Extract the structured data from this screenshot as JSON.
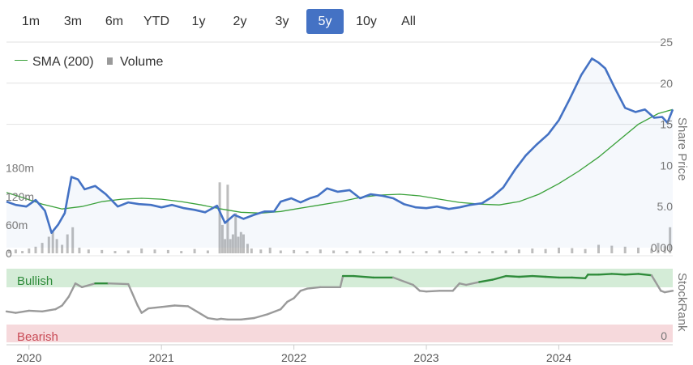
{
  "range_buttons": [
    {
      "label": "1m",
      "active": false
    },
    {
      "label": "3m",
      "active": false
    },
    {
      "label": "6m",
      "active": false
    },
    {
      "label": "YTD",
      "active": false
    },
    {
      "label": "1y",
      "active": false
    },
    {
      "label": "2y",
      "active": false
    },
    {
      "label": "3y",
      "active": false
    },
    {
      "label": "5y",
      "active": true
    },
    {
      "label": "10y",
      "active": false
    },
    {
      "label": "All",
      "active": false
    }
  ],
  "legend": {
    "sma_label": "SMA (200)",
    "volume_label": "Volume"
  },
  "colors": {
    "price": "#4472c4",
    "sma": "#3aa13a",
    "volume": "#bdbdbd",
    "stockrank_bullish": "#2e8b3a",
    "stockrank_neutral": "#9a9a9a",
    "bullish_band": "#d4ecd7",
    "bearish_band": "#f6d9dc",
    "active_button": "#4472c4"
  },
  "chart_data": [
    {
      "type": "line",
      "title": "",
      "ylabel": "Share Price",
      "ylim": [
        0,
        25
      ],
      "yticks": [
        "25",
        "20",
        "15",
        "10",
        "5.0",
        "0.00"
      ],
      "x_ticks": [
        "2020",
        "2021",
        "2022",
        "2023",
        "2024"
      ],
      "x_range": [
        2019.83,
        2024.86
      ],
      "series": [
        {
          "name": "Price",
          "x": [
            2019.83,
            2019.9,
            2019.98,
            2020.05,
            2020.12,
            2020.17,
            2020.22,
            2020.27,
            2020.32,
            2020.37,
            2020.42,
            2020.5,
            2020.58,
            2020.67,
            2020.75,
            2020.83,
            2020.92,
            2021.0,
            2021.08,
            2021.17,
            2021.25,
            2021.33,
            2021.42,
            2021.48,
            2021.55,
            2021.62,
            2021.7,
            2021.78,
            2021.85,
            2021.9,
            2021.98,
            2022.05,
            2022.12,
            2022.18,
            2022.25,
            2022.33,
            2022.42,
            2022.5,
            2022.58,
            2022.67,
            2022.75,
            2022.83,
            2022.92,
            2023.0,
            2023.08,
            2023.17,
            2023.25,
            2023.33,
            2023.42,
            2023.5,
            2023.58,
            2023.67,
            2023.75,
            2023.83,
            2023.92,
            2024.0,
            2024.08,
            2024.17,
            2024.25,
            2024.3,
            2024.35,
            2024.42,
            2024.5,
            2024.58,
            2024.65,
            2024.72,
            2024.78,
            2024.82,
            2024.86
          ],
          "y": [
            5.6,
            5.2,
            5.0,
            5.8,
            4.5,
            1.8,
            2.8,
            4.2,
            8.6,
            8.3,
            7.1,
            7.5,
            6.5,
            5.0,
            5.5,
            5.3,
            5.2,
            4.9,
            5.2,
            4.8,
            4.6,
            4.3,
            5.1,
            3.0,
            4.0,
            3.5,
            4.0,
            4.4,
            4.4,
            5.6,
            6.0,
            5.5,
            6.0,
            6.3,
            7.2,
            6.8,
            7.0,
            6.0,
            6.5,
            6.3,
            6.0,
            5.3,
            4.9,
            4.8,
            5.0,
            4.7,
            4.9,
            5.2,
            5.4,
            6.2,
            7.3,
            9.5,
            11.2,
            12.5,
            13.8,
            15.5,
            18.0,
            21.0,
            23.0,
            22.5,
            21.8,
            19.5,
            17.0,
            16.5,
            16.8,
            15.8,
            15.9,
            15.2,
            16.8
          ]
        },
        {
          "name": "SMA (200)",
          "x": [
            2019.83,
            2019.95,
            2020.1,
            2020.25,
            2020.4,
            2020.55,
            2020.7,
            2020.85,
            2021.0,
            2021.15,
            2021.3,
            2021.45,
            2021.6,
            2021.75,
            2021.9,
            2022.05,
            2022.2,
            2022.35,
            2022.5,
            2022.65,
            2022.8,
            2022.95,
            2023.1,
            2023.25,
            2023.4,
            2023.55,
            2023.7,
            2023.85,
            2024.0,
            2024.15,
            2024.3,
            2024.45,
            2024.6,
            2024.75,
            2024.86
          ],
          "y": [
            6.7,
            6.1,
            5.3,
            4.7,
            5.0,
            5.6,
            5.9,
            6.0,
            5.9,
            5.6,
            5.2,
            4.7,
            4.3,
            4.2,
            4.4,
            4.8,
            5.2,
            5.6,
            6.1,
            6.4,
            6.5,
            6.3,
            5.9,
            5.5,
            5.3,
            5.2,
            5.6,
            6.5,
            7.8,
            9.3,
            11.0,
            13.0,
            15.0,
            16.3,
            16.8
          ]
        }
      ]
    },
    {
      "type": "bar",
      "title": "",
      "ylabel": "",
      "ylim": [
        0,
        200
      ],
      "yticks": [
        "180m",
        "120m",
        "60m",
        "0"
      ],
      "series": [
        {
          "name": "Volume",
          "x": [
            2019.85,
            2019.9,
            2019.95,
            2020.0,
            2020.05,
            2020.1,
            2020.15,
            2020.18,
            2020.21,
            2020.25,
            2020.29,
            2020.33,
            2020.38,
            2020.45,
            2020.55,
            2020.65,
            2020.75,
            2020.85,
            2020.95,
            2021.05,
            2021.15,
            2021.25,
            2021.35,
            2021.44,
            2021.46,
            2021.48,
            2021.5,
            2021.52,
            2021.54,
            2021.56,
            2021.58,
            2021.6,
            2021.62,
            2021.65,
            2021.68,
            2021.75,
            2021.82,
            2021.9,
            2022.0,
            2022.1,
            2022.2,
            2022.3,
            2022.4,
            2022.5,
            2022.6,
            2022.7,
            2022.8,
            2022.9,
            2023.0,
            2023.1,
            2023.2,
            2023.3,
            2023.4,
            2023.5,
            2023.6,
            2023.7,
            2023.8,
            2023.9,
            2024.0,
            2024.1,
            2024.2,
            2024.3,
            2024.4,
            2024.5,
            2024.6,
            2024.7,
            2024.75,
            2024.8,
            2024.84
          ],
          "y": [
            6,
            8,
            5,
            10,
            14,
            22,
            35,
            45,
            30,
            18,
            40,
            55,
            12,
            8,
            7,
            5,
            6,
            10,
            8,
            7,
            5,
            9,
            6,
            150,
            60,
            30,
            145,
            30,
            40,
            85,
            35,
            45,
            40,
            20,
            10,
            8,
            12,
            6,
            7,
            5,
            8,
            6,
            5,
            6,
            4,
            5,
            6,
            4,
            5,
            6,
            4,
            5,
            4,
            5,
            6,
            8,
            10,
            9,
            12,
            11,
            9,
            18,
            16,
            14,
            12,
            10,
            22,
            15,
            55
          ]
        }
      ]
    },
    {
      "type": "line",
      "title": "",
      "ylabel": "StockRank",
      "ylim": [
        0,
        100
      ],
      "ytick": "0",
      "bands": [
        {
          "label": "Bullish",
          "range": [
            80,
            100
          ]
        },
        {
          "label": "Bearish",
          "range": [
            0,
            20
          ]
        }
      ],
      "series": [
        {
          "name": "StockRank",
          "x": [
            2019.83,
            2019.9,
            2020.0,
            2020.1,
            2020.2,
            2020.25,
            2020.3,
            2020.35,
            2020.4,
            2020.5,
            2020.6,
            2020.75,
            2020.82,
            2020.85,
            2020.9,
            2021.0,
            2021.1,
            2021.2,
            2021.35,
            2021.42,
            2021.45,
            2021.5,
            2021.6,
            2021.7,
            2021.8,
            2021.9,
            2021.95,
            2022.0,
            2022.05,
            2022.1,
            2022.2,
            2022.35,
            2022.37,
            2022.45,
            2022.6,
            2022.75,
            2022.9,
            2022.95,
            2023.0,
            2023.1,
            2023.2,
            2023.25,
            2023.3,
            2023.4,
            2023.5,
            2023.6,
            2023.7,
            2023.8,
            2023.9,
            2024.0,
            2024.1,
            2024.2,
            2024.22,
            2024.3,
            2024.4,
            2024.5,
            2024.6,
            2024.7,
            2024.77,
            2024.8,
            2024.86
          ],
          "y": [
            42,
            40,
            43,
            42,
            45,
            50,
            62,
            80,
            75,
            80,
            80,
            79,
            50,
            40,
            46,
            48,
            50,
            49,
            33,
            31,
            32,
            31,
            31,
            33,
            38,
            45,
            55,
            60,
            70,
            73,
            75,
            75,
            90,
            90,
            88,
            88,
            78,
            70,
            69,
            70,
            70,
            80,
            78,
            82,
            85,
            90,
            89,
            90,
            89,
            88,
            88,
            87,
            92,
            92,
            93,
            92,
            93,
            91,
            70,
            68,
            70
          ]
        }
      ]
    }
  ]
}
